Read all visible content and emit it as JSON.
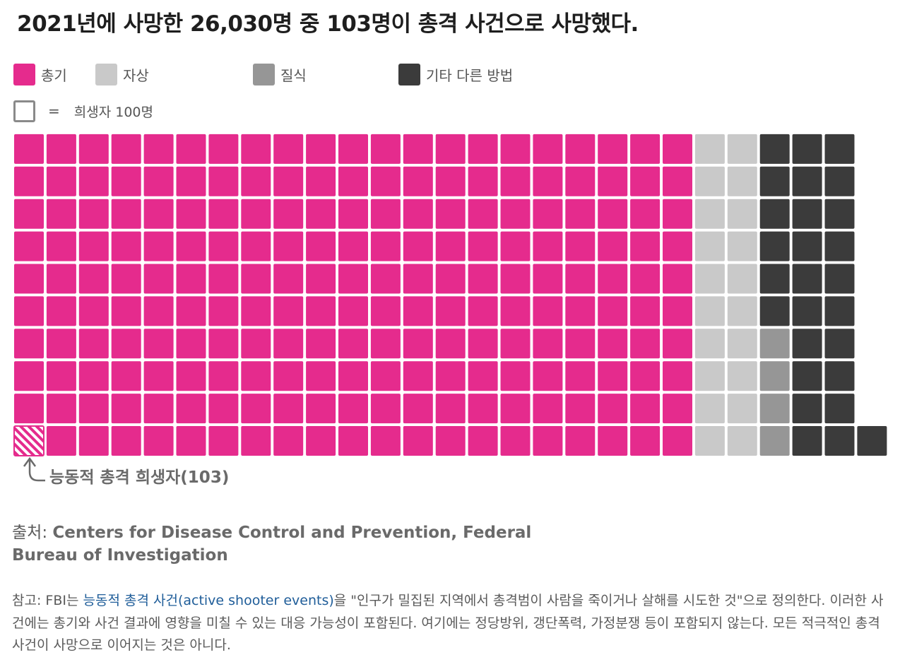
{
  "title": "2021년에 사망한 26,030명 중 103명이 총격 사건으로 사망했다.",
  "legend": [
    {
      "label": "총기",
      "color": "#e52b8d"
    },
    {
      "label": "자상",
      "color": "#c9c9c9"
    },
    {
      "label": "질식",
      "color": "#969696"
    },
    {
      "label": "기타 다른 방법",
      "color": "#3b3b3b"
    }
  ],
  "unit": {
    "equals": "=",
    "label": "희생자 100명"
  },
  "annotation": "능동적 총격 희생자(103)",
  "source": {
    "label": "출처:",
    "text": "Centers for Disease Control and Prevention, Federal Bureau of Investigation"
  },
  "note": {
    "prefix": "참고: FBI는 ",
    "link": "능동적 총격 사건(active shooter events)",
    "suffix": "을 \"인구가 밀집된 지역에서 총격범이 사람을 죽이거나 살해를 시도한 것\"으로 정의한다. 이러한 사건에는 총기와 사건 결과에 영향을 미칠 수 있는 대응 가능성이 포함된다. 여기에는 정당방위, 갱단폭력, 가정분쟁 등이 포함되지 않는다. 모든 적극적인 총격 사건이 사망으로 이어지는 것은 아니다."
  },
  "chart_data": {
    "type": "waffle",
    "unit_value": 100,
    "unit_label": "희생자 100명",
    "rows": 10,
    "fill_order": "column-major, bottom to top",
    "categories": [
      {
        "name": "총기",
        "squares": 210,
        "color": "#e52b8d"
      },
      {
        "name": "자상",
        "squares": 20,
        "color": "#c9c9c9"
      },
      {
        "name": "질식",
        "squares": 4,
        "color": "#969696"
      },
      {
        "name": "기타 다른 방법",
        "squares": 27,
        "color": "#3b3b3b"
      }
    ],
    "highlight": {
      "label": "능동적 총격 희생자(103)",
      "value": 103,
      "squares": 1,
      "pattern": "hatched"
    }
  }
}
